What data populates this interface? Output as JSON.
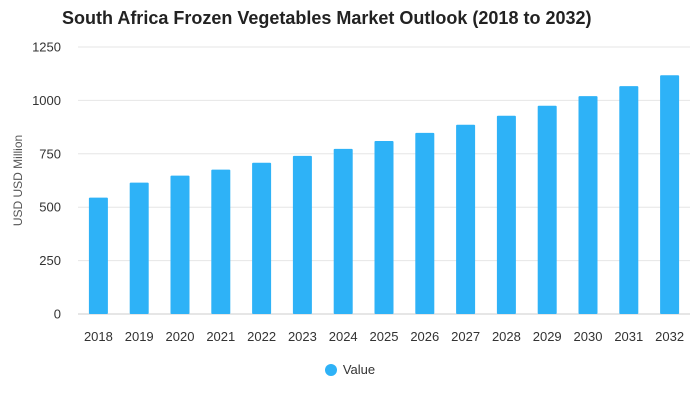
{
  "chart_data": {
    "type": "bar",
    "title": "South Africa Frozen Vegetables Market Outlook (2018 to 2032)",
    "ylabel": "USD USD Million",
    "xlabel": "",
    "categories": [
      "2018",
      "2019",
      "2020",
      "2021",
      "2022",
      "2023",
      "2024",
      "2025",
      "2026",
      "2027",
      "2028",
      "2029",
      "2030",
      "2031",
      "2032"
    ],
    "series": [
      {
        "name": "Value",
        "values": [
          545,
          615,
          648,
          676,
          708,
          740,
          773,
          810,
          848,
          886,
          928,
          975,
          1020,
          1067,
          1118
        ],
        "color": "#2EB2F7"
      }
    ],
    "ylim": [
      0,
      1250
    ],
    "yticks": [
      0,
      250,
      500,
      750,
      1000,
      1250
    ],
    "grid": true,
    "legend": "bottom-center"
  }
}
